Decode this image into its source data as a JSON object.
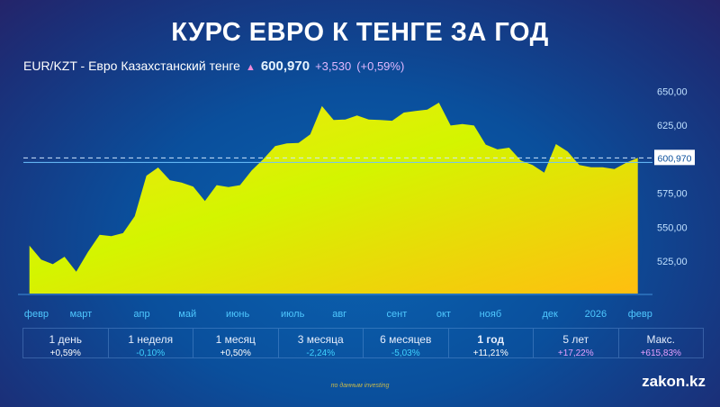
{
  "title": "КУРС ЕВРО К ТЕНГЕ ЗА ГОД",
  "ticker": {
    "pair": "EUR/KZT - Евро Казахстанский тенге",
    "direction_icon": "up-arrow-icon",
    "price": "600,970",
    "change": "+3,530",
    "change_pct": "(+0,59%)"
  },
  "chart_data": {
    "type": "area",
    "title": "",
    "xlabel": "",
    "ylabel": "",
    "ylim": [
      501,
      657
    ],
    "grid": false,
    "y_axis_position": "right",
    "y_ticks": [
      "650,00",
      "625,00",
      "575,00",
      "550,00",
      "525,00"
    ],
    "y_tick_values": [
      650,
      625,
      575,
      550,
      525
    ],
    "current_value_label": "600,970",
    "current_value": 600.97,
    "x_ticks": [
      {
        "label": "февр",
        "index": 0.6
      },
      {
        "label": "март",
        "index": 4.4
      },
      {
        "label": "апр",
        "index": 9.6
      },
      {
        "label": "май",
        "index": 13.5
      },
      {
        "label": "июнь",
        "index": 17.8
      },
      {
        "label": "июль",
        "index": 22.5
      },
      {
        "label": "авг",
        "index": 26.5
      },
      {
        "label": "сент",
        "index": 31.4
      },
      {
        "label": "окт",
        "index": 35.4
      },
      {
        "label": "нояб",
        "index": 39.4
      },
      {
        "label": "дек",
        "index": 44.5
      },
      {
        "label": "2026",
        "index": 48.4
      },
      {
        "label": "февр",
        "index": 52.2
      }
    ],
    "values": [
      536.5,
      526.2,
      522.8,
      528.3,
      517.3,
      531.7,
      544.4,
      543.4,
      545.6,
      558.1,
      587.9,
      593.9,
      584.6,
      582.8,
      579.8,
      569.2,
      580.9,
      579.5,
      580.9,
      591.7,
      600.1,
      609.6,
      611.6,
      612.0,
      618.2,
      639.1,
      628.8,
      629.2,
      632.1,
      629.2,
      628.8,
      628.3,
      634.3,
      635.5,
      636.5,
      641.6,
      624.8,
      625.9,
      624.8,
      610.7,
      607.2,
      608.5,
      599.0,
      595.7,
      590.1,
      611.1,
      605.6,
      595.7,
      594.1,
      594.1,
      592.8,
      597.4,
      600.97
    ],
    "colors": {
      "fill_top": "#d4f500",
      "fill_mid": "#f2e812",
      "fill_bottom": "#ffc20e",
      "current_line": "#6ec3ff"
    }
  },
  "periods": [
    {
      "label": "1 день",
      "value": "+0,59%",
      "color": "#ffffff"
    },
    {
      "label": "1 неделя",
      "value": "-0,10%",
      "color": "#3fd2ff"
    },
    {
      "label": "1 месяц",
      "value": "+0,50%",
      "color": "#ffffff"
    },
    {
      "label": "3 месяца",
      "value": "-2,24%",
      "color": "#3fd2ff"
    },
    {
      "label": "6 месяцев",
      "value": "-5,03%",
      "color": "#3fd2ff"
    },
    {
      "label": "1 год",
      "value": "+11,21%",
      "color": "#ffffff",
      "active": true
    },
    {
      "label": "5 лет",
      "value": "+17,22%",
      "color": "#e6a0ff"
    },
    {
      "label": "Макс.",
      "value": "+615,83%",
      "color": "#e6a0ff"
    }
  ],
  "source": "по данным investing",
  "brand": "zakon.kz"
}
